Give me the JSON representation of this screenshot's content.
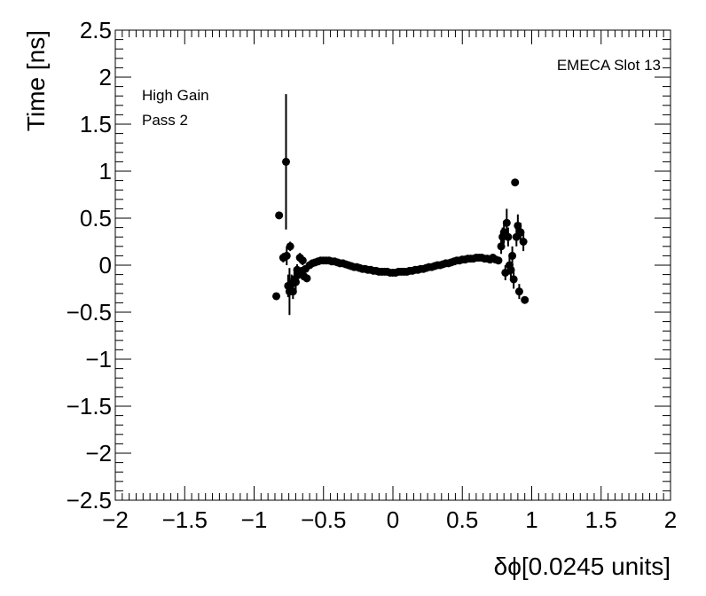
{
  "chart_data": {
    "type": "scatter",
    "title": "",
    "xlabel": "δϕ[0.0245 units]",
    "ylabel": "Time [ns]",
    "xlim": [
      -2,
      2
    ],
    "ylim": [
      -2.5,
      2.5
    ],
    "x_ticks": [
      -2,
      -1.5,
      -1,
      -0.5,
      0,
      0.5,
      1,
      1.5,
      2
    ],
    "x_tick_labels": [
      "−2",
      "−1.5",
      "−1",
      "−0.5",
      "0",
      "0.5",
      "1",
      "1.5",
      "2"
    ],
    "y_ticks": [
      -2.5,
      -2,
      -1.5,
      -1,
      -0.5,
      0,
      0.5,
      1,
      1.5,
      2,
      2.5
    ],
    "y_tick_labels": [
      "−2.5",
      "−2",
      "−1.5",
      "−1",
      "−0.5",
      "0",
      "0.5",
      "1",
      "1.5",
      "2",
      "2.5"
    ],
    "grid": false,
    "legend": "none",
    "annotations": {
      "top_right": "EMECA Slot 13",
      "line1": "High Gain",
      "line2": "Pass 2"
    },
    "colors": {
      "marker": "#000000",
      "axis": "#000000",
      "background": "#ffffff"
    },
    "series": [
      {
        "points": [
          {
            "x": -0.84,
            "y": -0.33,
            "err": 0.03
          },
          {
            "x": -0.82,
            "y": 0.53,
            "err": 0.04
          },
          {
            "x": -0.79,
            "y": 0.08,
            "err": 0.05
          },
          {
            "x": -0.77,
            "y": 1.1,
            "err": 0.72
          },
          {
            "x": -0.765,
            "y": 0.1,
            "err": 0.1
          },
          {
            "x": -0.755,
            "y": -0.22,
            "err": 0.12
          },
          {
            "x": -0.745,
            "y": -0.28,
            "err": 0.25
          },
          {
            "x": -0.74,
            "y": 0.2,
            "err": 0.05
          },
          {
            "x": -0.73,
            "y": -0.2,
            "err": 0.1
          },
          {
            "x": -0.72,
            "y": -0.28,
            "err": 0.08
          },
          {
            "x": -0.71,
            "y": -0.15,
            "err": 0.08
          },
          {
            "x": -0.7,
            "y": -0.18,
            "err": 0.08
          },
          {
            "x": -0.69,
            "y": -0.05,
            "err": 0.06
          },
          {
            "x": -0.68,
            "y": -0.1,
            "err": 0.05
          },
          {
            "x": -0.67,
            "y": 0.08,
            "err": 0.05
          },
          {
            "x": -0.66,
            "y": -0.07,
            "err": 0.05
          },
          {
            "x": -0.65,
            "y": 0.05,
            "err": 0.05
          },
          {
            "x": -0.64,
            "y": -0.12,
            "err": 0.04
          },
          {
            "x": -0.63,
            "y": -0.04,
            "err": 0.04
          },
          {
            "x": -0.62,
            "y": -0.14,
            "err": 0.04
          },
          {
            "x": -0.6,
            "y": 0.0,
            "err": 0.02
          },
          {
            "x": -0.58,
            "y": 0.02,
            "err": 0.02
          },
          {
            "x": -0.56,
            "y": 0.03,
            "err": 0.01
          },
          {
            "x": -0.54,
            "y": 0.04,
            "err": 0.01
          },
          {
            "x": -0.52,
            "y": 0.05,
            "err": 0.01
          },
          {
            "x": -0.5,
            "y": 0.05,
            "err": 0.01
          },
          {
            "x": -0.48,
            "y": 0.05,
            "err": 0.01
          },
          {
            "x": -0.46,
            "y": 0.05,
            "err": 0.01
          },
          {
            "x": -0.44,
            "y": 0.04,
            "err": 0.01
          },
          {
            "x": -0.42,
            "y": 0.04,
            "err": 0.01
          },
          {
            "x": -0.4,
            "y": 0.03,
            "err": 0.01
          },
          {
            "x": -0.38,
            "y": 0.02,
            "err": 0.01
          },
          {
            "x": -0.36,
            "y": 0.02,
            "err": 0.01
          },
          {
            "x": -0.34,
            "y": 0.01,
            "err": 0.01
          },
          {
            "x": -0.32,
            "y": 0.0,
            "err": 0.01
          },
          {
            "x": -0.3,
            "y": -0.01,
            "err": 0.01
          },
          {
            "x": -0.28,
            "y": -0.02,
            "err": 0.01
          },
          {
            "x": -0.26,
            "y": -0.02,
            "err": 0.01
          },
          {
            "x": -0.24,
            "y": -0.03,
            "err": 0.01
          },
          {
            "x": -0.22,
            "y": -0.04,
            "err": 0.01
          },
          {
            "x": -0.2,
            "y": -0.04,
            "err": 0.01
          },
          {
            "x": -0.18,
            "y": -0.05,
            "err": 0.01
          },
          {
            "x": -0.16,
            "y": -0.05,
            "err": 0.01
          },
          {
            "x": -0.14,
            "y": -0.06,
            "err": 0.01
          },
          {
            "x": -0.12,
            "y": -0.06,
            "err": 0.01
          },
          {
            "x": -0.1,
            "y": -0.07,
            "err": 0.01
          },
          {
            "x": -0.08,
            "y": -0.07,
            "err": 0.01
          },
          {
            "x": -0.06,
            "y": -0.07,
            "err": 0.01
          },
          {
            "x": -0.04,
            "y": -0.07,
            "err": 0.01
          },
          {
            "x": -0.02,
            "y": -0.08,
            "err": 0.01
          },
          {
            "x": 0.0,
            "y": -0.08,
            "err": 0.01
          },
          {
            "x": 0.02,
            "y": -0.08,
            "err": 0.01
          },
          {
            "x": 0.04,
            "y": -0.07,
            "err": 0.01
          },
          {
            "x": 0.06,
            "y": -0.07,
            "err": 0.01
          },
          {
            "x": 0.08,
            "y": -0.07,
            "err": 0.01
          },
          {
            "x": 0.1,
            "y": -0.07,
            "err": 0.01
          },
          {
            "x": 0.12,
            "y": -0.06,
            "err": 0.01
          },
          {
            "x": 0.14,
            "y": -0.06,
            "err": 0.01
          },
          {
            "x": 0.16,
            "y": -0.05,
            "err": 0.01
          },
          {
            "x": 0.18,
            "y": -0.05,
            "err": 0.01
          },
          {
            "x": 0.2,
            "y": -0.04,
            "err": 0.01
          },
          {
            "x": 0.22,
            "y": -0.04,
            "err": 0.01
          },
          {
            "x": 0.24,
            "y": -0.03,
            "err": 0.01
          },
          {
            "x": 0.26,
            "y": -0.02,
            "err": 0.01
          },
          {
            "x": 0.28,
            "y": -0.02,
            "err": 0.01
          },
          {
            "x": 0.3,
            "y": -0.01,
            "err": 0.01
          },
          {
            "x": 0.32,
            "y": 0.0,
            "err": 0.01
          },
          {
            "x": 0.34,
            "y": 0.0,
            "err": 0.01
          },
          {
            "x": 0.36,
            "y": 0.01,
            "err": 0.01
          },
          {
            "x": 0.38,
            "y": 0.02,
            "err": 0.01
          },
          {
            "x": 0.4,
            "y": 0.02,
            "err": 0.01
          },
          {
            "x": 0.42,
            "y": 0.03,
            "err": 0.01
          },
          {
            "x": 0.44,
            "y": 0.04,
            "err": 0.01
          },
          {
            "x": 0.46,
            "y": 0.05,
            "err": 0.01
          },
          {
            "x": 0.48,
            "y": 0.05,
            "err": 0.01
          },
          {
            "x": 0.5,
            "y": 0.06,
            "err": 0.01
          },
          {
            "x": 0.52,
            "y": 0.06,
            "err": 0.01
          },
          {
            "x": 0.54,
            "y": 0.07,
            "err": 0.01
          },
          {
            "x": 0.56,
            "y": 0.07,
            "err": 0.01
          },
          {
            "x": 0.58,
            "y": 0.07,
            "err": 0.01
          },
          {
            "x": 0.6,
            "y": 0.08,
            "err": 0.01
          },
          {
            "x": 0.62,
            "y": 0.08,
            "err": 0.01
          },
          {
            "x": 0.64,
            "y": 0.08,
            "err": 0.01
          },
          {
            "x": 0.66,
            "y": 0.07,
            "err": 0.01
          },
          {
            "x": 0.68,
            "y": 0.07,
            "err": 0.02
          },
          {
            "x": 0.7,
            "y": 0.06,
            "err": 0.02
          },
          {
            "x": 0.72,
            "y": 0.08,
            "err": 0.02
          },
          {
            "x": 0.74,
            "y": 0.06,
            "err": 0.03
          },
          {
            "x": 0.76,
            "y": 0.05,
            "err": 0.03
          },
          {
            "x": 0.78,
            "y": 0.2,
            "err": 0.08
          },
          {
            "x": 0.79,
            "y": 0.3,
            "err": 0.1
          },
          {
            "x": 0.8,
            "y": 0.35,
            "err": 0.12
          },
          {
            "x": 0.81,
            "y": -0.08,
            "err": 0.08
          },
          {
            "x": 0.82,
            "y": 0.45,
            "err": 0.15
          },
          {
            "x": 0.83,
            "y": 0.3,
            "err": 0.1
          },
          {
            "x": 0.84,
            "y": 0.0,
            "err": 0.1
          },
          {
            "x": 0.85,
            "y": -0.05,
            "err": 0.08
          },
          {
            "x": 0.86,
            "y": 0.1,
            "err": 0.1
          },
          {
            "x": 0.87,
            "y": -0.15,
            "err": 0.1
          },
          {
            "x": 0.88,
            "y": 0.88,
            "err": 0.03
          },
          {
            "x": 0.89,
            "y": 0.3,
            "err": 0.1
          },
          {
            "x": 0.9,
            "y": 0.42,
            "err": 0.12
          },
          {
            "x": 0.91,
            "y": -0.28,
            "err": 0.08
          },
          {
            "x": 0.92,
            "y": 0.35,
            "err": 0.1
          },
          {
            "x": 0.94,
            "y": 0.25,
            "err": 0.1
          },
          {
            "x": 0.95,
            "y": -0.37,
            "err": 0.03
          }
        ]
      }
    ]
  }
}
